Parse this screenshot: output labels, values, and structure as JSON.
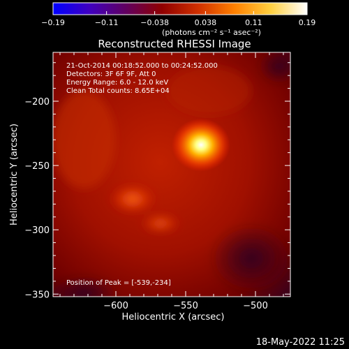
{
  "colorbar": {
    "ticks": [
      "-0.19",
      "-0.11",
      "-0.038",
      "0.038",
      "0.11",
      "0.19"
    ],
    "units": "(photons cm⁻² s⁻¹ asec⁻²)",
    "range": [
      -0.19,
      0.19
    ],
    "stops": [
      "#0000ff",
      "#4000c0",
      "#600060",
      "#900000",
      "#d03000",
      "#ff8000",
      "#ffd040",
      "#ffffff"
    ]
  },
  "chart_data": {
    "type": "heatmap",
    "title": "Reconstructed RHESSI Image",
    "xlabel": "Heliocentric X (arcsec)",
    "ylabel": "Heliocentric Y (arcsec)",
    "xlim": [
      -645,
      -475
    ],
    "ylim": [
      -352,
      -162
    ],
    "xticks": [
      -600,
      -550,
      -500
    ],
    "xtick_labels": [
      "−600",
      "−550",
      "−500"
    ],
    "yticks": [
      -200,
      -250,
      -300,
      -350
    ],
    "ytick_labels": [
      "−200",
      "−250",
      "−300",
      "−350"
    ],
    "peak": {
      "x": -539,
      "y": -234
    },
    "annotations": [
      "21-Oct-2014 00:18:52.000 to 00:24:52.000",
      "Detectors: 3F 6F 9F, Att 0",
      "Energy Range: 6.0 - 12.0 keV",
      "Clean     Total counts: 8.65E+04"
    ],
    "peak_label": "Position of Peak = [-539,-234]"
  },
  "footer": {
    "timestamp": "18-May-2022 11:25"
  }
}
